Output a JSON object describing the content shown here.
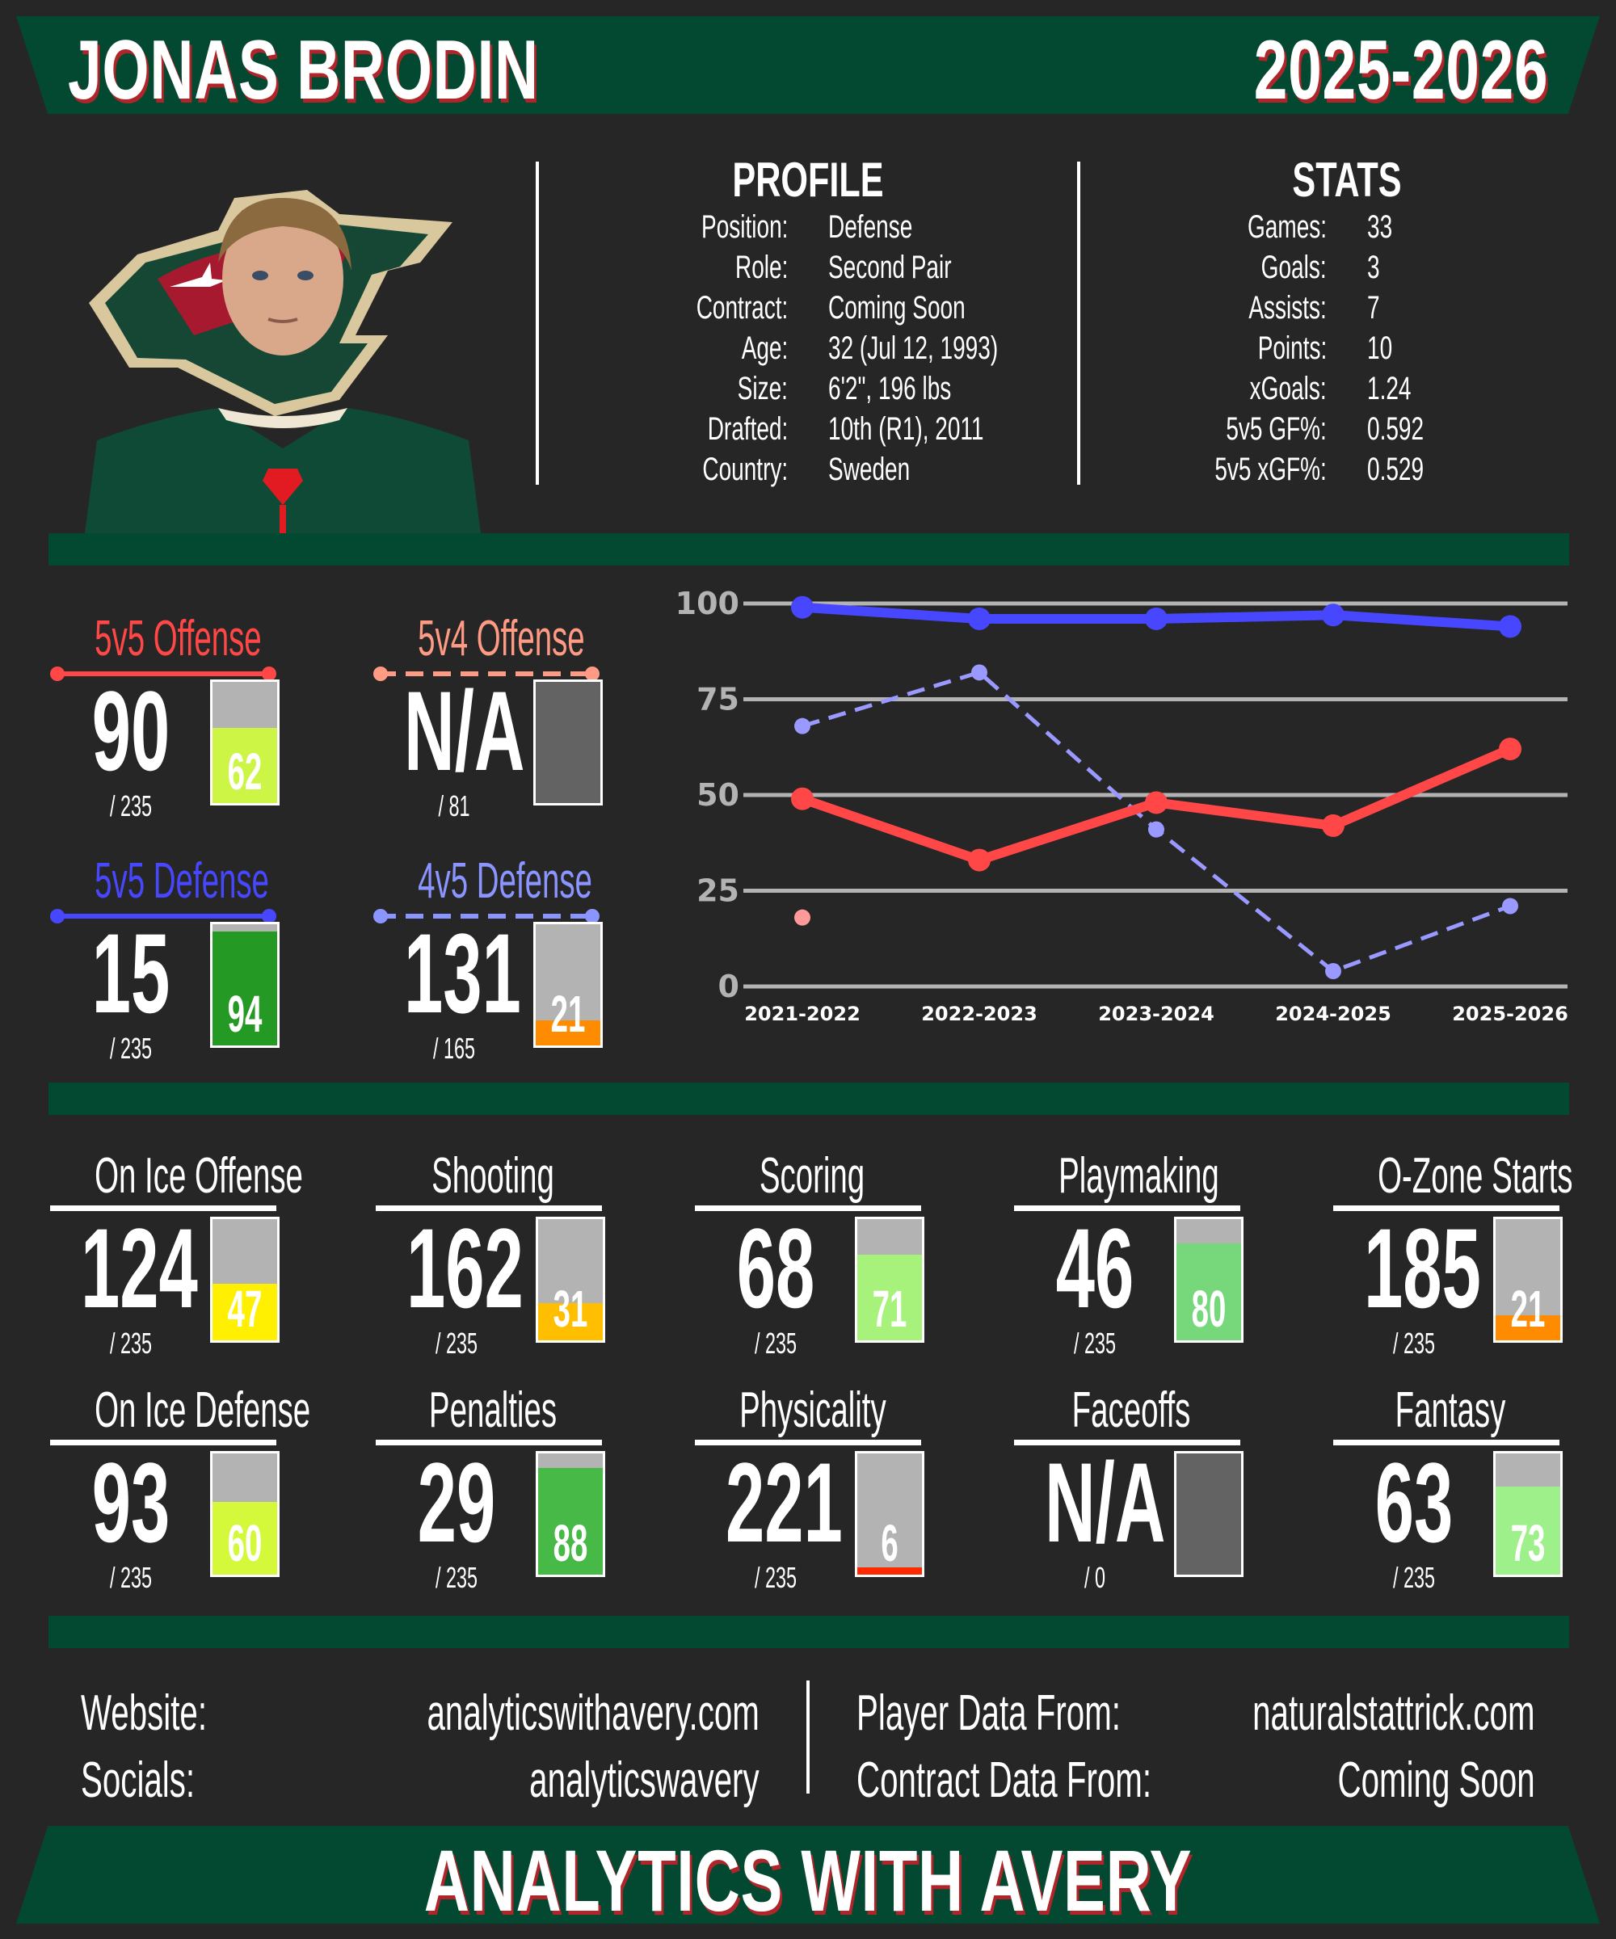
{
  "header": {
    "player_name": "JONAS BRODIN",
    "season": "2025-2026"
  },
  "colors": {
    "background": "#262626",
    "banner_green": "#034830",
    "title_shadow": "#b0252a",
    "offense_5v5": "#ff4747",
    "offense_5v4": "#ff9a85",
    "defense_5v5": "#4747ff",
    "defense_4v5": "#8a95ff",
    "bar_empty": "#b3b3b3",
    "bar_na": "#636363"
  },
  "profile": {
    "title": "PROFILE",
    "rows": [
      {
        "label": "Position:",
        "value": "Defense"
      },
      {
        "label": "Role:",
        "value": "Second Pair"
      },
      {
        "label": "Contract:",
        "value": "Coming Soon"
      },
      {
        "label": "Age:",
        "value": "32 (Jul 12, 1993)"
      },
      {
        "label": "Size:",
        "value": "6'2\", 196 lbs"
      },
      {
        "label": "Drafted:",
        "value": "10th (R1), 2011"
      },
      {
        "label": "Country:",
        "value": "Sweden"
      }
    ]
  },
  "stats": {
    "title": "STATS",
    "rows": [
      {
        "label": "Games:",
        "value": "33"
      },
      {
        "label": "Goals:",
        "value": "3"
      },
      {
        "label": "Assists:",
        "value": "7"
      },
      {
        "label": "Points:",
        "value": "10"
      },
      {
        "label": "xGoals:",
        "value": "1.24"
      },
      {
        "label": "5v5 GF%:",
        "value": "0.592"
      },
      {
        "label": "5v5 xGF%:",
        "value": "0.529"
      }
    ]
  },
  "special_metrics": [
    {
      "label": "5v5 Offense",
      "rank": "90",
      "total": "/ 235",
      "percentile": "62",
      "pct_value": 62,
      "fill": "#ccf545",
      "color": "#ff4747",
      "dashed": false
    },
    {
      "label": "5v4 Offense",
      "rank": "N/A",
      "total": "/ 81",
      "percentile": "",
      "pct_value": 0,
      "fill": "#636363",
      "color": "#ff9a85",
      "dashed": true,
      "na": true
    },
    {
      "label": "5v5 Defense",
      "rank": "15",
      "total": "/ 235",
      "percentile": "94",
      "pct_value": 94,
      "fill": "#249a24",
      "color": "#4747ff",
      "dashed": false
    },
    {
      "label": "4v5 Defense",
      "rank": "131",
      "total": "/ 165",
      "percentile": "21",
      "pct_value": 21,
      "fill": "#ff8c00",
      "color": "#8a95ff",
      "dashed": true
    }
  ],
  "chart_data": {
    "type": "line",
    "title": "",
    "xlabel": "",
    "ylabel": "",
    "categories": [
      "2021-2022",
      "2022-2023",
      "2023-2024",
      "2024-2025",
      "2025-2026"
    ],
    "ylim": [
      0,
      100
    ],
    "yticks": [
      0,
      25,
      50,
      75,
      100
    ],
    "grid": true,
    "series": [
      {
        "name": "5v5 Defense",
        "color": "#4747ff",
        "style": "solid",
        "values": [
          99,
          96,
          96,
          97,
          94
        ]
      },
      {
        "name": "4v5 Defense",
        "color": "#9999ff",
        "style": "dashed",
        "values": [
          68,
          82,
          41,
          4,
          21
        ]
      },
      {
        "name": "5v5 Offense",
        "color": "#ff4747",
        "style": "solid",
        "values": [
          49,
          33,
          48,
          42,
          62
        ]
      },
      {
        "name": "5v4 Offense",
        "color": "#ff9a9a",
        "style": "solid",
        "values": [
          18,
          null,
          null,
          null,
          null
        ]
      }
    ],
    "x_icons": [
      "wild-logo",
      "wild-logo",
      "wild-logo",
      "wild-logo",
      "wild-logo"
    ]
  },
  "metrics": [
    {
      "label": "On Ice Offense",
      "rank": "124",
      "total": "/ 235",
      "percentile": "47",
      "pct_value": 47,
      "fill": "#ffef00"
    },
    {
      "label": "Shooting",
      "rank": "162",
      "total": "/ 235",
      "percentile": "31",
      "pct_value": 31,
      "fill": "#ffbe00"
    },
    {
      "label": "Scoring",
      "rank": "68",
      "total": "/ 235",
      "percentile": "71",
      "pct_value": 71,
      "fill": "#a6f27a"
    },
    {
      "label": "Playmaking",
      "rank": "46",
      "total": "/ 235",
      "percentile": "80",
      "pct_value": 80,
      "fill": "#76d87a"
    },
    {
      "label": "O-Zone Starts",
      "rank": "185",
      "total": "/ 235",
      "percentile": "21",
      "pct_value": 21,
      "fill": "#ff8c00"
    },
    {
      "label": "On Ice Defense",
      "rank": "93",
      "total": "/ 235",
      "percentile": "60",
      "pct_value": 60,
      "fill": "#d4f93a"
    },
    {
      "label": "Penalties",
      "rank": "29",
      "total": "/ 235",
      "percentile": "88",
      "pct_value": 88,
      "fill": "#46b946"
    },
    {
      "label": "Physicality",
      "rank": "221",
      "total": "/ 235",
      "percentile": "6",
      "pct_value": 6,
      "fill": "#ff2a00"
    },
    {
      "label": "Faceoffs",
      "rank": "N/A",
      "total": "/ 0",
      "percentile": "",
      "pct_value": 0,
      "fill": "#636363",
      "na": true
    },
    {
      "label": "Fantasy",
      "rank": "63",
      "total": "/ 235",
      "percentile": "73",
      "pct_value": 73,
      "fill": "#9ef08a"
    }
  ],
  "footer": {
    "website_label": "Website:",
    "website_value": "analyticswithavery.com",
    "socials_label": "Socials:",
    "socials_value": "analyticswavery",
    "player_data_label": "Player Data From:",
    "player_data_value": "naturalstattrick.com",
    "contract_data_label": "Contract Data From:",
    "contract_data_value": "Coming Soon",
    "brand": "ANALYTICS WITH AVERY"
  }
}
